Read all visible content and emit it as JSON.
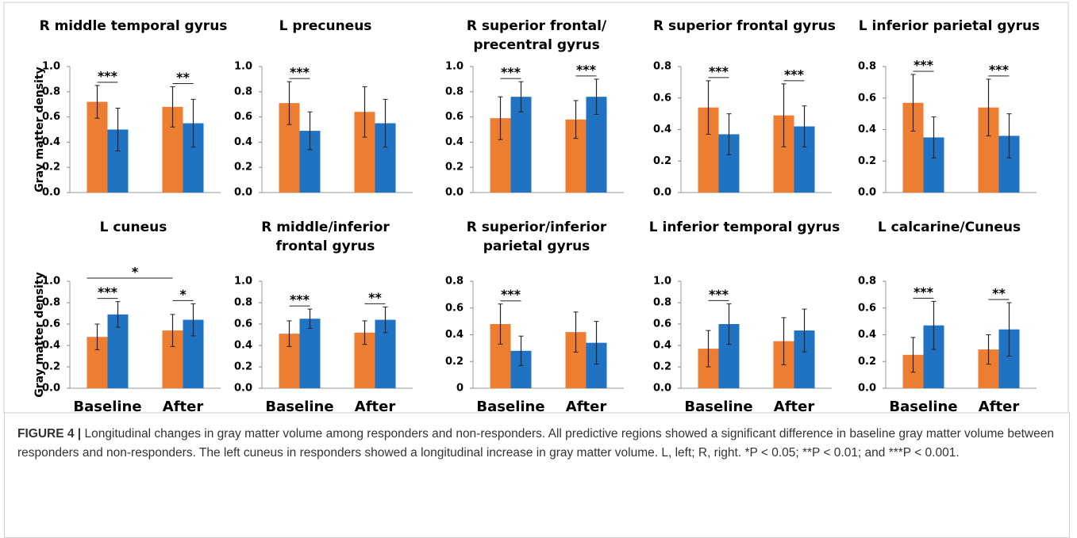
{
  "chart_data": [
    {
      "type": "bar",
      "title": [
        "R middle temporal gyrus"
      ],
      "ylabel": "Gray matter density",
      "categories": [
        null,
        null
      ],
      "ylim": [
        0,
        1
      ],
      "yticks": [
        {
          "value": 0,
          "label": "0.0"
        },
        0.2,
        0.4,
        0.6,
        0.8,
        {
          "value": 1,
          "label": "1.0"
        }
      ],
      "series": [
        {
          "name": "Responders",
          "color": "#ed7d31",
          "values": [
            0.72,
            0.68
          ],
          "errors": [
            0.13,
            0.16
          ]
        },
        {
          "name": "Non-responders",
          "color": "#1f73c2",
          "values": [
            0.5,
            0.55
          ],
          "errors": [
            0.17,
            0.19
          ]
        }
      ],
      "annotations": [
        "***",
        "**"
      ]
    },
    {
      "type": "bar",
      "title": [
        "L precuneus"
      ],
      "categories": [
        null,
        null
      ],
      "ylim": [
        0,
        1
      ],
      "yticks": [
        {
          "value": 0,
          "label": "0.0"
        },
        0.2,
        0.4,
        0.6,
        0.8,
        {
          "value": 1,
          "label": "1.0"
        }
      ],
      "series": [
        {
          "name": "Responders",
          "color": "#ed7d31",
          "values": [
            0.71,
            0.64
          ],
          "errors": [
            0.17,
            0.2
          ]
        },
        {
          "name": "Non-responders",
          "color": "#1f73c2",
          "values": [
            0.49,
            0.55
          ],
          "errors": [
            0.15,
            0.19
          ]
        }
      ],
      "annotations": [
        "***",
        null
      ]
    },
    {
      "type": "bar",
      "title": [
        "R superior frontal/",
        "precentral gyrus"
      ],
      "categories": [
        null,
        null
      ],
      "ylim": [
        0,
        1
      ],
      "yticks": [
        {
          "value": 0,
          "label": "0.0"
        },
        0.2,
        0.4,
        0.6,
        0.8,
        {
          "value": 1,
          "label": "1.0"
        }
      ],
      "series": [
        {
          "name": "Responders",
          "color": "#ed7d31",
          "values": [
            0.59,
            0.58
          ],
          "errors": [
            0.17,
            0.15
          ]
        },
        {
          "name": "Non-responders",
          "color": "#1f73c2",
          "values": [
            0.76,
            0.76
          ],
          "errors": [
            0.12,
            0.14
          ]
        }
      ],
      "annotations": [
        "***",
        "***"
      ]
    },
    {
      "type": "bar",
      "title": [
        "R superior frontal gyrus"
      ],
      "categories": [
        null,
        null
      ],
      "ylim": [
        0,
        0.8
      ],
      "yticks": [
        {
          "value": 0,
          "label": "0.0"
        },
        0.2,
        0.4,
        0.6,
        0.8
      ],
      "series": [
        {
          "name": "Responders",
          "color": "#ed7d31",
          "values": [
            0.54,
            0.49
          ],
          "errors": [
            0.17,
            0.2
          ]
        },
        {
          "name": "Non-responders",
          "color": "#1f73c2",
          "values": [
            0.37,
            0.42
          ],
          "errors": [
            0.13,
            0.13
          ]
        }
      ],
      "annotations": [
        "***",
        "***"
      ]
    },
    {
      "type": "bar",
      "title": [
        "L inferior parietal gyrus"
      ],
      "categories": [
        null,
        null
      ],
      "ylim": [
        0,
        0.8
      ],
      "yticks": [
        {
          "value": 0,
          "label": "0.0"
        },
        0.2,
        0.4,
        0.6,
        0.8
      ],
      "series": [
        {
          "name": "Responders",
          "color": "#ed7d31",
          "values": [
            0.57,
            0.54
          ],
          "errors": [
            0.18,
            0.18
          ]
        },
        {
          "name": "Non-responders",
          "color": "#1f73c2",
          "values": [
            0.35,
            0.36
          ],
          "errors": [
            0.13,
            0.14
          ]
        }
      ],
      "annotations": [
        "***",
        "***"
      ]
    },
    {
      "type": "bar",
      "title": [
        "L cuneus"
      ],
      "ylabel": "Gray matter density",
      "categories": [
        "Baseline",
        "After"
      ],
      "ylim": [
        0,
        1
      ],
      "yticks": [
        {
          "value": 0,
          "label": "0.0"
        },
        0.2,
        0.4,
        0.6,
        0.8,
        {
          "value": 1,
          "label": "1.0"
        }
      ],
      "series": [
        {
          "name": "Responders",
          "color": "#ed7d31",
          "values": [
            0.48,
            0.54
          ],
          "errors": [
            0.12,
            0.15
          ]
        },
        {
          "name": "Non-responders",
          "color": "#1f73c2",
          "values": [
            0.69,
            0.64
          ],
          "errors": [
            0.12,
            0.15
          ]
        }
      ],
      "annotations": [
        "***",
        "*"
      ],
      "cross_annotation": "*"
    },
    {
      "type": "bar",
      "title": [
        "R middle/inferior",
        "frontal gyrus"
      ],
      "categories": [
        "Baseline",
        "After"
      ],
      "ylim": [
        0,
        1
      ],
      "yticks": [
        {
          "value": 0,
          "label": "0.0"
        },
        0.2,
        0.4,
        0.6,
        0.8,
        {
          "value": 1,
          "label": "1.0"
        }
      ],
      "series": [
        {
          "name": "Responders",
          "color": "#ed7d31",
          "values": [
            0.51,
            0.52
          ],
          "errors": [
            0.12,
            0.11
          ]
        },
        {
          "name": "Non-responders",
          "color": "#1f73c2",
          "values": [
            0.65,
            0.64
          ],
          "errors": [
            0.09,
            0.12
          ]
        }
      ],
      "annotations": [
        "***",
        "**"
      ]
    },
    {
      "type": "bar",
      "title": [
        "R superior/inferior",
        "parietal gyrus"
      ],
      "categories": [
        "Baseline",
        "After"
      ],
      "ylim": [
        0,
        0.8
      ],
      "yticks": [
        0,
        0.2,
        0.4,
        0.6,
        0.8
      ],
      "series": [
        {
          "name": "Responders",
          "color": "#ed7d31",
          "values": [
            0.48,
            0.42
          ],
          "errors": [
            0.15,
            0.15
          ]
        },
        {
          "name": "Non-responders",
          "color": "#1f73c2",
          "values": [
            0.28,
            0.34
          ],
          "errors": [
            0.11,
            0.16
          ]
        }
      ],
      "annotations": [
        "***",
        null
      ]
    },
    {
      "type": "bar",
      "title": [
        "L inferior temporal gyrus"
      ],
      "categories": [
        "Baseline",
        "After"
      ],
      "ylim": [
        0,
        1
      ],
      "yticks": [
        {
          "value": 0,
          "label": "0.0"
        },
        0.2,
        0.4,
        0.6,
        0.8,
        {
          "value": 1,
          "label": "1.0"
        }
      ],
      "series": [
        {
          "name": "Responders",
          "color": "#ed7d31",
          "values": [
            0.37,
            0.44
          ],
          "errors": [
            0.17,
            0.22
          ]
        },
        {
          "name": "Non-responders",
          "color": "#1f73c2",
          "values": [
            0.6,
            0.54
          ],
          "errors": [
            0.19,
            0.2
          ]
        }
      ],
      "annotations": [
        "***",
        null
      ]
    },
    {
      "type": "bar",
      "title": [
        "L calcarine/Cuneus"
      ],
      "categories": [
        "Baseline",
        "After"
      ],
      "ylim": [
        0,
        0.8
      ],
      "yticks": [
        {
          "value": 0,
          "label": "0.0"
        },
        0.2,
        0.4,
        0.6,
        0.8
      ],
      "series": [
        {
          "name": "Responders",
          "color": "#ed7d31",
          "values": [
            0.25,
            0.29
          ],
          "errors": [
            0.13,
            0.11
          ]
        },
        {
          "name": "Non-responders",
          "color": "#1f73c2",
          "values": [
            0.47,
            0.44
          ],
          "errors": [
            0.18,
            0.2
          ]
        }
      ],
      "annotations": [
        "***",
        "**"
      ]
    }
  ],
  "caption": {
    "label": "FIGURE 4 |",
    "text": "Longitudinal changes in gray matter volume among responders and non-responders. All predictive regions showed a significant difference in baseline gray matter volume between responders and non-responders. The left cuneus in responders showed a longitudinal increase in gray matter volume. L, left; R, right. *P < 0.05; **P < 0.01; and ***P < 0.001."
  }
}
